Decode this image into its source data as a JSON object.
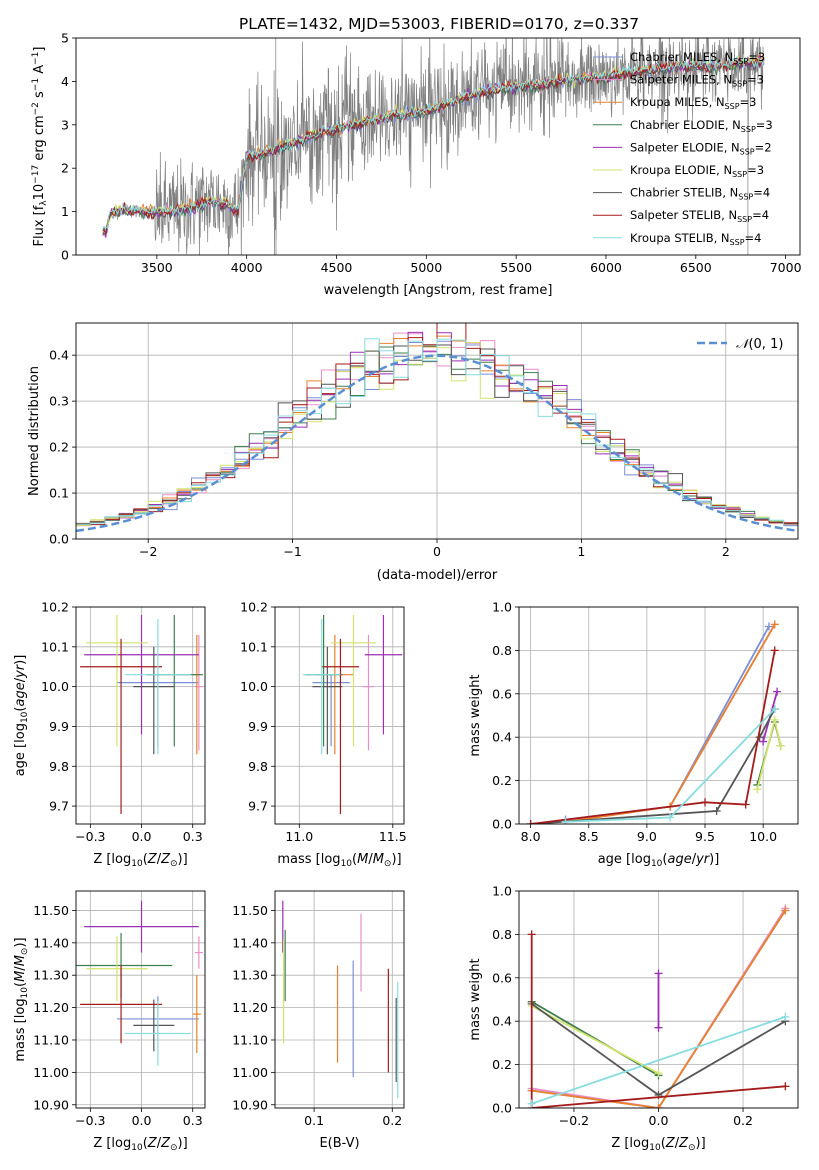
{
  "colors": {
    "Chabrier MILES": "#7b8fd6",
    "Salpeter MILES": "#e88fc8",
    "Kroupa MILES": "#e8822c",
    "Chabrier ELODIE": "#3f7f4f",
    "Salpeter ELODIE": "#9b2fb5",
    "Kroupa ELODIE": "#d4e36c",
    "Chabrier STELIB": "#555555",
    "Salpeter STELIB": "#a51c1c",
    "Kroupa STELIB": "#86dde0"
  },
  "chart_data": [
    {
      "id": "spectrum",
      "type": "line",
      "title": "PLATE=1432, MJD=53003, FIBERID=0170, z=0.337",
      "xlabel": "wavelength [Angstrom, rest frame]",
      "ylabel": "Flux [f_λ 10^-17 erg cm^-2 s^-1 A^-1]",
      "xlim": [
        3050,
        7080
      ],
      "ylim": [
        0,
        5
      ],
      "xticks": [
        3500,
        4000,
        4500,
        5000,
        5500,
        6000,
        6500,
        7000
      ],
      "yticks": [
        0,
        1,
        2,
        3,
        4,
        5
      ],
      "data_color": "#808080",
      "data_range": [
        3200,
        6880
      ],
      "model_anchor_points": [
        [
          3215,
          0.55
        ],
        [
          3240,
          0.95
        ],
        [
          3300,
          1.05
        ],
        [
          3400,
          1.0
        ],
        [
          3500,
          1.0
        ],
        [
          3600,
          1.0
        ],
        [
          3700,
          1.1
        ],
        [
          3800,
          1.25
        ],
        [
          3900,
          1.15
        ],
        [
          3950,
          1.0
        ],
        [
          4000,
          2.25
        ],
        [
          4050,
          2.3
        ],
        [
          4200,
          2.5
        ],
        [
          4400,
          2.8
        ],
        [
          4600,
          3.0
        ],
        [
          4800,
          3.2
        ],
        [
          5000,
          3.3
        ],
        [
          5200,
          3.6
        ],
        [
          5400,
          3.85
        ],
        [
          5600,
          3.9
        ],
        [
          5800,
          4.05
        ],
        [
          6000,
          4.1
        ],
        [
          6200,
          4.25
        ],
        [
          6400,
          4.35
        ],
        [
          6600,
          4.35
        ],
        [
          6880,
          4.45
        ]
      ],
      "legend": [
        {
          "label": "Chabrier MILES, N_SSP=3",
          "text": "Chabrier MILES, N",
          "sub": "SSP",
          "tail": "=3",
          "key": "Chabrier MILES"
        },
        {
          "label": "Salpeter MILES, N_SSP=3",
          "text": "Salpeter MILES, N",
          "sub": "SSP",
          "tail": "=3",
          "key": "Salpeter MILES"
        },
        {
          "label": "Kroupa MILES, N_SSP=3",
          "text": "Kroupa MILES, N",
          "sub": "SSP",
          "tail": "=3",
          "key": "Kroupa MILES"
        },
        {
          "label": "Chabrier ELODIE, N_SSP=3",
          "text": "Chabrier ELODIE, N",
          "sub": "SSP",
          "tail": "=3",
          "key": "Chabrier ELODIE"
        },
        {
          "label": "Salpeter ELODIE, N_SSP=2",
          "text": "Salpeter ELODIE, N",
          "sub": "SSP",
          "tail": "=2",
          "key": "Salpeter ELODIE"
        },
        {
          "label": "Kroupa ELODIE, N_SSP=3",
          "text": "Kroupa ELODIE, N",
          "sub": "SSP",
          "tail": "=3",
          "key": "Kroupa ELODIE"
        },
        {
          "label": "Chabrier STELIB, N_SSP=4",
          "text": "Chabrier STELIB, N",
          "sub": "SSP",
          "tail": "=4",
          "key": "Chabrier STELIB"
        },
        {
          "label": "Salpeter STELIB, N_SSP=4",
          "text": "Salpeter STELIB, N",
          "sub": "SSP",
          "tail": "=4",
          "key": "Salpeter STELIB"
        },
        {
          "label": "Kroupa STELIB, N_SSP=4",
          "text": "Kroupa STELIB, N",
          "sub": "SSP",
          "tail": "=4",
          "key": "Kroupa STELIB"
        }
      ],
      "legend_position": "upper right"
    },
    {
      "id": "residuals",
      "type": "histogram",
      "xlabel": "(data-model)/error",
      "ylabel": "Normed distribution",
      "xlim": [
        -2.5,
        2.5
      ],
      "ylim": [
        0,
        0.47
      ],
      "xticks": [
        -2,
        -1,
        0,
        1,
        2
      ],
      "yticks": [
        0.0,
        0.1,
        0.2,
        0.3,
        0.4
      ],
      "bin_width": 0.1,
      "reference_curve": {
        "label": "N(0,1)",
        "color": "#5b8fd4",
        "style": "dashed",
        "mean": 0,
        "sigma": 1
      },
      "legend_position": "upper right",
      "grid": true
    },
    {
      "id": "age_vs_Z",
      "type": "errorbar",
      "xlabel": "Z [log10(Z/Z⊙)]",
      "ylabel": "age  [log10(age/yr)]",
      "xlim": [
        -0.32,
        0.31
      ],
      "ylim": [
        9.655,
        10.2
      ],
      "xticks": [
        -0.25,
        0.0,
        0.25
      ],
      "yticks": [
        9.7,
        9.8,
        9.9,
        10.0,
        10.1,
        10.2
      ],
      "points": [
        {
          "key": "Chabrier MILES",
          "x": 0.08,
          "y": 10.01,
          "xerr": 0.2,
          "yerr": [
            0.16,
            0.02
          ]
        },
        {
          "key": "Salpeter MILES",
          "x": 0.28,
          "y": 10.0,
          "xerr": 0.02,
          "yerr": [
            0.16,
            0.13
          ]
        },
        {
          "key": "Kroupa MILES",
          "x": 0.27,
          "y": 10.03,
          "xerr": 0.02,
          "yerr": [
            0.2,
            0.1
          ]
        },
        {
          "key": "Chabrier ELODIE",
          "x": 0.16,
          "y": 10.03,
          "xerr": 0.14,
          "yerr": [
            0.18,
            0.15
          ]
        },
        {
          "key": "Salpeter ELODIE",
          "x": 0.0,
          "y": 10.08,
          "xerr": 0.28,
          "yerr": [
            0.2,
            0.1
          ]
        },
        {
          "key": "Kroupa ELODIE",
          "x": -0.12,
          "y": 10.11,
          "xerr": 0.15,
          "yerr": [
            0.26,
            0.07
          ]
        },
        {
          "key": "Chabrier STELIB",
          "x": 0.06,
          "y": 10.0,
          "xerr": 0.1,
          "yerr": [
            0.17,
            0.1
          ]
        },
        {
          "key": "Salpeter STELIB",
          "x": -0.1,
          "y": 10.05,
          "xerr": 0.2,
          "yerr": [
            0.37,
            0.07
          ]
        },
        {
          "key": "Kroupa STELIB",
          "x": 0.08,
          "y": 10.03,
          "xerr": 0.16,
          "yerr": [
            0.2,
            0.14
          ]
        }
      ],
      "grid": true
    },
    {
      "id": "age_vs_mass",
      "type": "errorbar",
      "xlabel": "mass [log10(M/M⊙)]",
      "ylabel": "",
      "xlim": [
        10.87,
        11.56
      ],
      "ylim": [
        9.655,
        10.2
      ],
      "xticks": [
        11.0,
        11.5
      ],
      "yticks": [
        9.7,
        9.8,
        9.9,
        10.0,
        10.1,
        10.2
      ],
      "points": [
        {
          "key": "Chabrier MILES",
          "x": 11.17,
          "y": 10.01,
          "xerr": 0.1,
          "yerr": [
            0.16,
            0.02
          ]
        },
        {
          "key": "Salpeter MILES",
          "x": 11.37,
          "y": 10.0,
          "xerr": 0.03,
          "yerr": [
            0.16,
            0.13
          ]
        },
        {
          "key": "Kroupa MILES",
          "x": 11.19,
          "y": 10.03,
          "xerr": 0.1,
          "yerr": [
            0.2,
            0.1
          ]
        },
        {
          "key": "Chabrier ELODIE",
          "x": 11.13,
          "y": 10.03,
          "xerr": 0.1,
          "yerr": [
            0.18,
            0.15
          ]
        },
        {
          "key": "Salpeter ELODIE",
          "x": 11.45,
          "y": 10.08,
          "xerr": 0.1,
          "yerr": [
            0.2,
            0.1
          ]
        },
        {
          "key": "Kroupa ELODIE",
          "x": 11.29,
          "y": 10.11,
          "xerr": 0.12,
          "yerr": [
            0.26,
            0.07
          ]
        },
        {
          "key": "Chabrier STELIB",
          "x": 11.15,
          "y": 10.0,
          "xerr": 0.08,
          "yerr": [
            0.17,
            0.1
          ]
        },
        {
          "key": "Salpeter STELIB",
          "x": 11.22,
          "y": 10.05,
          "xerr": 0.1,
          "yerr": [
            0.37,
            0.07
          ]
        },
        {
          "key": "Kroupa STELIB",
          "x": 11.12,
          "y": 10.03,
          "xerr": 0.1,
          "yerr": [
            0.2,
            0.14
          ]
        }
      ],
      "grid": true
    },
    {
      "id": "weight_vs_age",
      "type": "line",
      "xlabel": "age  [log10(age/yr)]",
      "ylabel": "mass weight",
      "xlim": [
        7.9,
        10.3
      ],
      "ylim": [
        0,
        1.0
      ],
      "xticks": [
        8.0,
        8.5,
        9.0,
        9.5,
        10.0
      ],
      "yticks": [
        0.0,
        0.2,
        0.4,
        0.6,
        0.8,
        1.0
      ],
      "series": [
        {
          "key": "Chabrier MILES",
          "x": [
            8.3,
            9.2,
            10.05
          ],
          "y": [
            0.02,
            0.08,
            0.91
          ]
        },
        {
          "key": "Salpeter MILES",
          "x": [
            8.3,
            9.2,
            10.1
          ],
          "y": [
            0.01,
            0.08,
            0.92
          ]
        },
        {
          "key": "Kroupa MILES",
          "x": [
            8.3,
            9.2,
            10.1
          ],
          "y": [
            0.01,
            0.08,
            0.92
          ]
        },
        {
          "key": "Chabrier ELODIE",
          "x": [
            9.95,
            10.1,
            10.15
          ],
          "y": [
            0.18,
            0.47,
            0.36
          ]
        },
        {
          "key": "Salpeter ELODIE",
          "x": [
            10.0,
            10.12
          ],
          "y": [
            0.38,
            0.61
          ]
        },
        {
          "key": "Kroupa ELODIE",
          "x": [
            9.95,
            10.1,
            10.15
          ],
          "y": [
            0.16,
            0.48,
            0.36
          ]
        },
        {
          "key": "Chabrier STELIB",
          "x": [
            8.0,
            9.6,
            9.97,
            10.1
          ],
          "y": [
            0.0,
            0.06,
            0.4,
            0.53
          ]
        },
        {
          "key": "Salpeter STELIB",
          "x": [
            8.0,
            9.5,
            9.85,
            10.1
          ],
          "y": [
            0.0,
            0.1,
            0.09,
            0.8
          ]
        },
        {
          "key": "Kroupa STELIB",
          "x": [
            8.3,
            9.2,
            10.1
          ],
          "y": [
            0.01,
            0.03,
            0.53
          ]
        }
      ],
      "grid": true
    },
    {
      "id": "mass_vs_Z",
      "type": "errorbar",
      "xlabel": "Z [log10(Z/Z⊙)]",
      "ylabel": "mass [log10(M/M⊙)]",
      "xlim": [
        -0.32,
        0.31
      ],
      "ylim": [
        10.89,
        11.56
      ],
      "xticks": [
        -0.25,
        0.0,
        0.25
      ],
      "yticks": [
        10.9,
        11.0,
        11.1,
        11.2,
        11.3,
        11.4,
        11.5
      ],
      "points": [
        {
          "key": "Chabrier MILES",
          "x": 0.08,
          "y": 11.165,
          "xerr": 0.2,
          "yerr": 0.07
        },
        {
          "key": "Salpeter MILES",
          "x": 0.28,
          "y": 11.37,
          "xerr": 0.02,
          "yerr": 0.05
        },
        {
          "key": "Kroupa MILES",
          "x": 0.27,
          "y": 11.18,
          "xerr": 0.02,
          "yerr": 0.12
        },
        {
          "key": "Chabrier ELODIE",
          "x": -0.1,
          "y": 11.33,
          "xerr": 0.25,
          "yerr": 0.1
        },
        {
          "key": "Salpeter ELODIE",
          "x": 0.0,
          "y": 11.45,
          "xerr": 0.28,
          "yerr": 0.08
        },
        {
          "key": "Kroupa ELODIE",
          "x": -0.12,
          "y": 11.32,
          "xerr": 0.15,
          "yerr": 0.1
        },
        {
          "key": "Chabrier STELIB",
          "x": 0.06,
          "y": 11.145,
          "xerr": 0.1,
          "yerr": 0.08
        },
        {
          "key": "Salpeter STELIB",
          "x": -0.1,
          "y": 11.21,
          "xerr": 0.2,
          "yerr": 0.12
        },
        {
          "key": "Kroupa STELIB",
          "x": 0.08,
          "y": 11.12,
          "xerr": 0.16,
          "yerr": 0.1
        }
      ],
      "grid": true
    },
    {
      "id": "mass_vs_ebv",
      "type": "errorbar",
      "xlabel": "E(B-V)",
      "ylabel": "",
      "xlim": [
        0.05,
        0.215
      ],
      "ylim": [
        10.89,
        11.56
      ],
      "xticks": [
        0.1,
        0.2
      ],
      "yticks": [
        10.9,
        11.0,
        11.1,
        11.2,
        11.3,
        11.4,
        11.5
      ],
      "points": [
        {
          "key": "Chabrier MILES",
          "x": 0.15,
          "y": 11.165,
          "yerr": 0.18
        },
        {
          "key": "Salpeter MILES",
          "x": 0.16,
          "y": 11.37,
          "yerr": 0.12
        },
        {
          "key": "Kroupa MILES",
          "x": 0.13,
          "y": 11.18,
          "yerr": 0.15
        },
        {
          "key": "Chabrier ELODIE",
          "x": 0.063,
          "y": 11.33,
          "yerr": 0.11
        },
        {
          "key": "Salpeter ELODIE",
          "x": 0.06,
          "y": 11.45,
          "yerr": 0.08
        },
        {
          "key": "Kroupa ELODIE",
          "x": 0.061,
          "y": 11.25,
          "yerr": 0.16
        },
        {
          "key": "Chabrier STELIB",
          "x": 0.205,
          "y": 11.1,
          "yerr": 0.13
        },
        {
          "key": "Salpeter STELIB",
          "x": 0.195,
          "y": 11.16,
          "yerr": 0.16
        },
        {
          "key": "Kroupa STELIB",
          "x": 0.207,
          "y": 11.1,
          "yerr": 0.18
        }
      ],
      "grid": true
    },
    {
      "id": "weight_vs_Z",
      "type": "line",
      "xlabel": "Z [log10(Z/Z⊙)]",
      "ylabel": "mass weight",
      "xlim": [
        -0.33,
        0.33
      ],
      "ylim": [
        0,
        1.0
      ],
      "xticks": [
        -0.2,
        0.0,
        0.2
      ],
      "yticks": [
        0.0,
        0.2,
        0.4,
        0.6,
        0.8,
        1.0
      ],
      "series": [
        {
          "key": "Chabrier MILES",
          "x": [
            -0.3,
            0.0,
            0.3
          ],
          "y": [
            0.08,
            0.0,
            0.91
          ]
        },
        {
          "key": "Salpeter MILES",
          "x": [
            -0.3,
            0.0,
            0.3
          ],
          "y": [
            0.09,
            0.0,
            0.92
          ]
        },
        {
          "key": "Kroupa MILES",
          "x": [
            -0.3,
            0.0,
            0.3
          ],
          "y": [
            0.08,
            0.0,
            0.91
          ]
        },
        {
          "key": "Chabrier ELODIE",
          "x": [
            -0.3,
            0.0
          ],
          "y": [
            0.49,
            0.15
          ]
        },
        {
          "key": "Salpeter ELODIE",
          "x": [
            0.0,
            0.0
          ],
          "y": [
            0.37,
            0.62
          ]
        },
        {
          "key": "Kroupa ELODIE",
          "x": [
            -0.3,
            0.0
          ],
          "y": [
            0.47,
            0.16
          ]
        },
        {
          "key": "Chabrier STELIB",
          "x": [
            -0.3,
            0.0,
            0.3
          ],
          "y": [
            0.48,
            0.06,
            0.4
          ]
        },
        {
          "key": "Salpeter STELIB",
          "x": [
            -0.3,
            -0.3,
            0.3
          ],
          "y": [
            0.8,
            0.0,
            0.1
          ]
        },
        {
          "key": "Kroupa STELIB",
          "x": [
            -0.3,
            0.3
          ],
          "y": [
            0.02,
            0.42
          ]
        }
      ],
      "grid": true
    }
  ]
}
